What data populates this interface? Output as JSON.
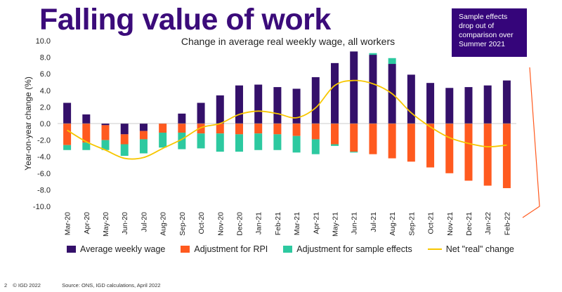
{
  "title": "Falling value of work",
  "callout": "Sample effects drop out of comparison over Summer 2021",
  "footer": {
    "page": "2",
    "copyright": "© IGD 2022",
    "source": "Source: ONS, IGD calculations, April 2022"
  },
  "colors": {
    "title": "#3b0b7a",
    "wage": "#34106a",
    "rpi": "#ff5a1f",
    "sample": "#2dc9a0",
    "net": "#f7c600",
    "callout_bg": "#35057a",
    "accent_line": "#ff5a1f"
  },
  "chart_data": {
    "type": "bar",
    "stacked": true,
    "title": "Change in average real weekly wage, all workers",
    "ylabel": "Year-on-year change (%)",
    "xlabel": "",
    "ylim": [
      -10,
      10
    ],
    "yticks": [
      "10.0",
      "8.0",
      "6.0",
      "4.0",
      "2.0",
      "0.0",
      "-2.0",
      "-4.0",
      "-6.0",
      "-8.0",
      "-10.0"
    ],
    "grid": false,
    "legend_position": "bottom",
    "categories": [
      "Mar-20",
      "Apr-20",
      "May-20",
      "Jun-20",
      "Jul-20",
      "Aug-20",
      "Sep-20",
      "Oct-20",
      "Nov-20",
      "Dec-20",
      "Jan-21",
      "Feb-21",
      "Mar-21",
      "Apr-21",
      "May-21",
      "Jun-21",
      "Jul-21",
      "Aug-21",
      "Sep-21",
      "Oct-21",
      "Nov-21",
      "Dec-21",
      "Jan-22",
      "Feb-22"
    ],
    "series": [
      {
        "name": "Average weekly wage",
        "kind": "bar",
        "color": "#34106a",
        "values": [
          2.5,
          1.1,
          -0.2,
          -1.3,
          -0.9,
          0.0,
          1.2,
          2.5,
          3.4,
          4.6,
          4.7,
          4.4,
          4.2,
          5.6,
          7.3,
          8.7,
          8.3,
          7.2,
          5.9,
          4.9,
          4.3,
          4.4,
          4.6,
          5.2
        ]
      },
      {
        "name": "Adjustment for RPI",
        "kind": "bar",
        "color": "#ff5a1f",
        "values": [
          -2.6,
          -2.3,
          -1.8,
          -1.2,
          -1.0,
          -1.1,
          -1.1,
          -1.2,
          -1.2,
          -1.3,
          -1.2,
          -1.3,
          -1.5,
          -1.9,
          -2.5,
          -3.4,
          -3.7,
          -4.2,
          -4.6,
          -5.3,
          -6.0,
          -6.9,
          -7.5,
          -7.8
        ]
      },
      {
        "name": "Adjustment for sample effects",
        "kind": "bar",
        "color": "#2dc9a0",
        "values": [
          -0.6,
          -0.9,
          -1.2,
          -1.4,
          -1.7,
          -1.8,
          -2.0,
          -1.8,
          -2.2,
          -2.1,
          -2.0,
          -1.9,
          -2.0,
          -1.8,
          -0.2,
          -0.1,
          0.2,
          0.7,
          0.0,
          0.0,
          0.0,
          0.0,
          0.0,
          0.0
        ]
      },
      {
        "name": "Net \"real\" change",
        "kind": "line",
        "color": "#f7c600",
        "values": [
          -0.8,
          -2.2,
          -3.2,
          -4.2,
          -4.1,
          -3.0,
          -1.9,
          -0.5,
          0.0,
          1.1,
          1.5,
          1.2,
          0.7,
          1.9,
          4.6,
          5.2,
          4.8,
          3.6,
          1.3,
          -0.4,
          -1.7,
          -2.4,
          -2.8,
          -2.6
        ]
      }
    ]
  }
}
